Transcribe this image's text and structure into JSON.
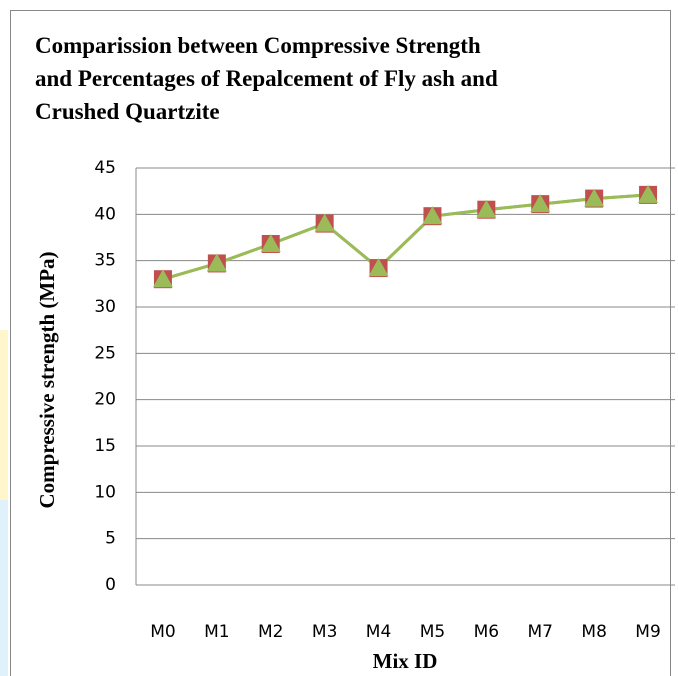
{
  "chart_data": {
    "type": "line",
    "title_lines": [
      "Comparission between  Compressive Strength",
      "and Percentages of Repalcement of Fly ash and",
      "Crushed Quartzite"
    ],
    "x_label": "Mix ID",
    "y_label": "Compressive strength  (MPa)",
    "categories": [
      "M0",
      "M1",
      "M2",
      "M3",
      "M4",
      "M5",
      "M6",
      "M7",
      "M8",
      "M9"
    ],
    "series": [
      {
        "color": "#c0504d",
        "marker": "square",
        "values": [
          33,
          34.7,
          36.8,
          39,
          34.2,
          39.8,
          40.5,
          41.1,
          41.7,
          42.1
        ]
      },
      {
        "color": "#9bbb59",
        "marker": "triangle",
        "values": [
          33,
          34.7,
          36.8,
          39,
          34.2,
          39.8,
          40.5,
          41.1,
          41.7,
          42.1
        ]
      }
    ],
    "ylim": [
      0,
      45
    ],
    "yticks": [
      0,
      5,
      10,
      15,
      20,
      25,
      30,
      35,
      40,
      45
    ],
    "grid": true
  }
}
